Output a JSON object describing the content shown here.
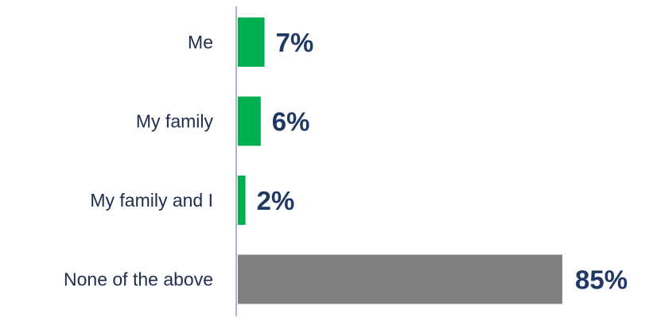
{
  "chart_data": {
    "type": "bar",
    "orientation": "horizontal",
    "categories": [
      "Me",
      "My family",
      "My family and I",
      "None of the above"
    ],
    "values": [
      7,
      6,
      2,
      85
    ],
    "value_labels": [
      "7%",
      "6%",
      "2%",
      "85%"
    ],
    "bar_colors": [
      "#00b050",
      "#00b050",
      "#00b050",
      "#808080"
    ],
    "value_label_color": "#1f3864",
    "category_label_color": "#1f2d4e",
    "axis_color": "#7f8ea8",
    "xlim": [
      0,
      85
    ],
    "grid": false,
    "legend": "none"
  }
}
